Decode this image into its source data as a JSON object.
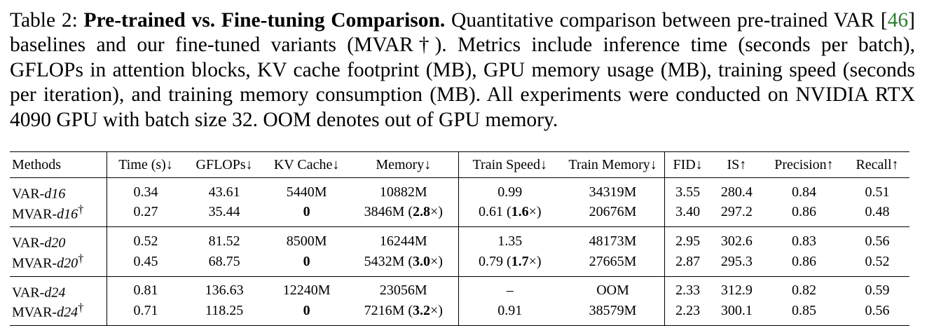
{
  "caption": {
    "label": "Table 2:",
    "title": "Pre-trained vs. Fine-tuning Comparison.",
    "text_part1": "Quantitative comparison between pre-trained VAR [",
    "cite": "46",
    "text_part2": "] baselines and our fine-tuned variants (MVAR†). Metrics include inference time (seconds per batch), GFLOPs in attention blocks, KV cache footprint (MB), GPU memory usage (MB), training speed (seconds per iteration), and training memory consumption (MB). All experiments were conducted on NVIDIA RTX 4090 GPU with batch size 32. OOM denotes out of GPU memory."
  },
  "table": {
    "headers": [
      "Methods",
      "Time (s)↓",
      "GFLOPs↓",
      "KV Cache↓",
      "Memory↓",
      "Train Speed↓",
      "Train Memory↓",
      "FID↓",
      "IS↑",
      "Precision↑",
      "Recall↑"
    ],
    "groups": [
      {
        "baseline": {
          "prefix": "VAR-",
          "depth": "d16",
          "dagger": "",
          "time": "0.34",
          "gflops": "43.61",
          "kv": "5440M",
          "memory": "10882M",
          "memory_ratio": "",
          "train_speed": "0.99",
          "train_speed_ratio": "",
          "train_memory": "34319M",
          "fid": "3.55",
          "is": "280.4",
          "precision": "0.84",
          "recall": "0.51"
        },
        "ours": {
          "prefix": "MVAR-",
          "depth": "d16",
          "dagger": "†",
          "time": "0.27",
          "gflops": "35.44",
          "kv": "0",
          "memory": "3846M (",
          "memory_ratio": "2.8",
          "train_speed": "0.61 (",
          "train_speed_ratio": "1.6",
          "train_memory": "20676M",
          "fid": "3.40",
          "is": "297.2",
          "precision": "0.86",
          "recall": "0.48"
        }
      },
      {
        "baseline": {
          "prefix": "VAR-",
          "depth": "d20",
          "dagger": "",
          "time": "0.52",
          "gflops": "81.52",
          "kv": "8500M",
          "memory": "16244M",
          "memory_ratio": "",
          "train_speed": "1.35",
          "train_speed_ratio": "",
          "train_memory": "48173M",
          "fid": "2.95",
          "is": "302.6",
          "precision": "0.83",
          "recall": "0.56"
        },
        "ours": {
          "prefix": "MVAR-",
          "depth": "d20",
          "dagger": "†",
          "time": "0.45",
          "gflops": "68.75",
          "kv": "0",
          "memory": "5432M (",
          "memory_ratio": "3.0",
          "train_speed": "0.79 (",
          "train_speed_ratio": "1.7",
          "train_memory": "27665M",
          "fid": "2.87",
          "is": "295.3",
          "precision": "0.86",
          "recall": "0.52"
        }
      },
      {
        "baseline": {
          "prefix": "VAR-",
          "depth": "d24",
          "dagger": "",
          "time": "0.81",
          "gflops": "136.63",
          "kv": "12240M",
          "memory": "23056M",
          "memory_ratio": "",
          "train_speed": "–",
          "train_speed_ratio": "",
          "train_memory": "OOM",
          "fid": "2.33",
          "is": "312.9",
          "precision": "0.82",
          "recall": "0.59"
        },
        "ours": {
          "prefix": "MVAR-",
          "depth": "d24",
          "dagger": "†",
          "time": "0.71",
          "gflops": "118.25",
          "kv": "0",
          "memory": "7216M (",
          "memory_ratio": "3.2",
          "train_speed": "0.91",
          "train_speed_ratio": "",
          "train_memory": "38579M",
          "fid": "2.23",
          "is": "300.1",
          "precision": "0.85",
          "recall": "0.56"
        }
      }
    ]
  }
}
